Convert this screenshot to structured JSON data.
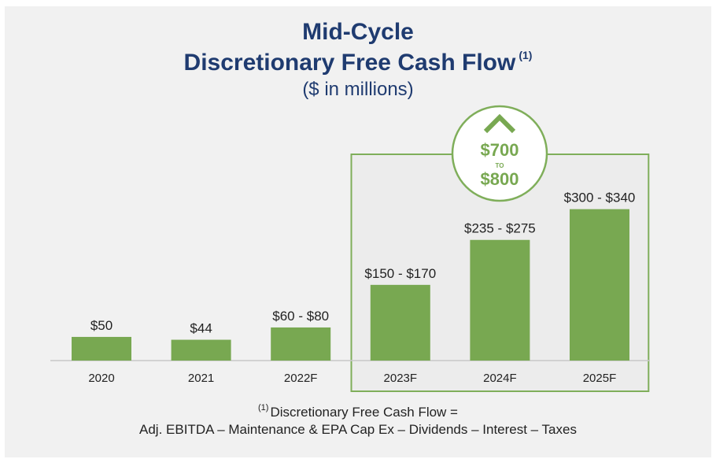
{
  "title_line1": "Mid-Cycle",
  "title_line2": "Discretionary Free Cash Flow",
  "title_note_marker": "(1)",
  "subtitle": "($ in millions)",
  "callout": {
    "top": "$700",
    "middle": "TO",
    "bottom": "$800",
    "icon": "chevron-up-icon"
  },
  "footnote": {
    "marker": "(1)",
    "line1": "Discretionary Free Cash Flow =",
    "line2": "Adj. EBITDA – Maintenance & EPA Cap Ex – Dividends – Interest – Taxes"
  },
  "colors": {
    "bar": "#78a851",
    "title": "#1f3b70",
    "highlight_border": "#7fae5a",
    "highlight_fill": "#ececec"
  },
  "chart_data": {
    "type": "bar",
    "categories": [
      "2020",
      "2021",
      "2022F",
      "2023F",
      "2024F",
      "2025F"
    ],
    "values": [
      50,
      44,
      70,
      160,
      255,
      320
    ],
    "value_labels": [
      "$50",
      "$44",
      "$60 - $80",
      "$150 - $170",
      "$235 - $275",
      "$300 - $340"
    ],
    "highlighted_categories": [
      "2023F",
      "2024F",
      "2025F"
    ],
    "title": "Mid-Cycle Discretionary Free Cash Flow",
    "ylabel": "",
    "xlabel": ""
  }
}
